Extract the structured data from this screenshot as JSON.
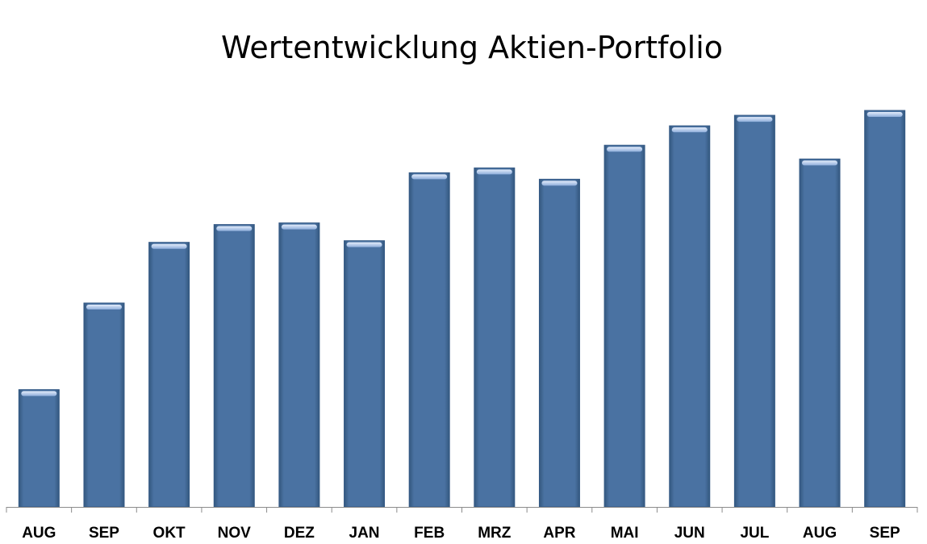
{
  "chart_data": {
    "type": "bar",
    "title": "Wertentwicklung Aktien-Portfolio",
    "xlabel": "",
    "ylabel": "",
    "categories": [
      "AUG",
      "SEP",
      "OKT",
      "NOV",
      "DEZ",
      "JAN",
      "FEB",
      "MRZ",
      "APR",
      "MAI",
      "JUN",
      "JUL",
      "AUG",
      "SEP"
    ],
    "values": [
      145,
      252,
      327,
      349,
      351,
      329,
      413,
      419,
      405,
      447,
      471,
      484,
      430,
      490
    ],
    "ylim": [
      0,
      500
    ],
    "grid": false,
    "legend": "none",
    "colors": {
      "bar": "#4a72a2",
      "bar_dark": "#355a86",
      "bar_cap": "#b9cdf0",
      "axis": "#8c8c8c"
    }
  }
}
